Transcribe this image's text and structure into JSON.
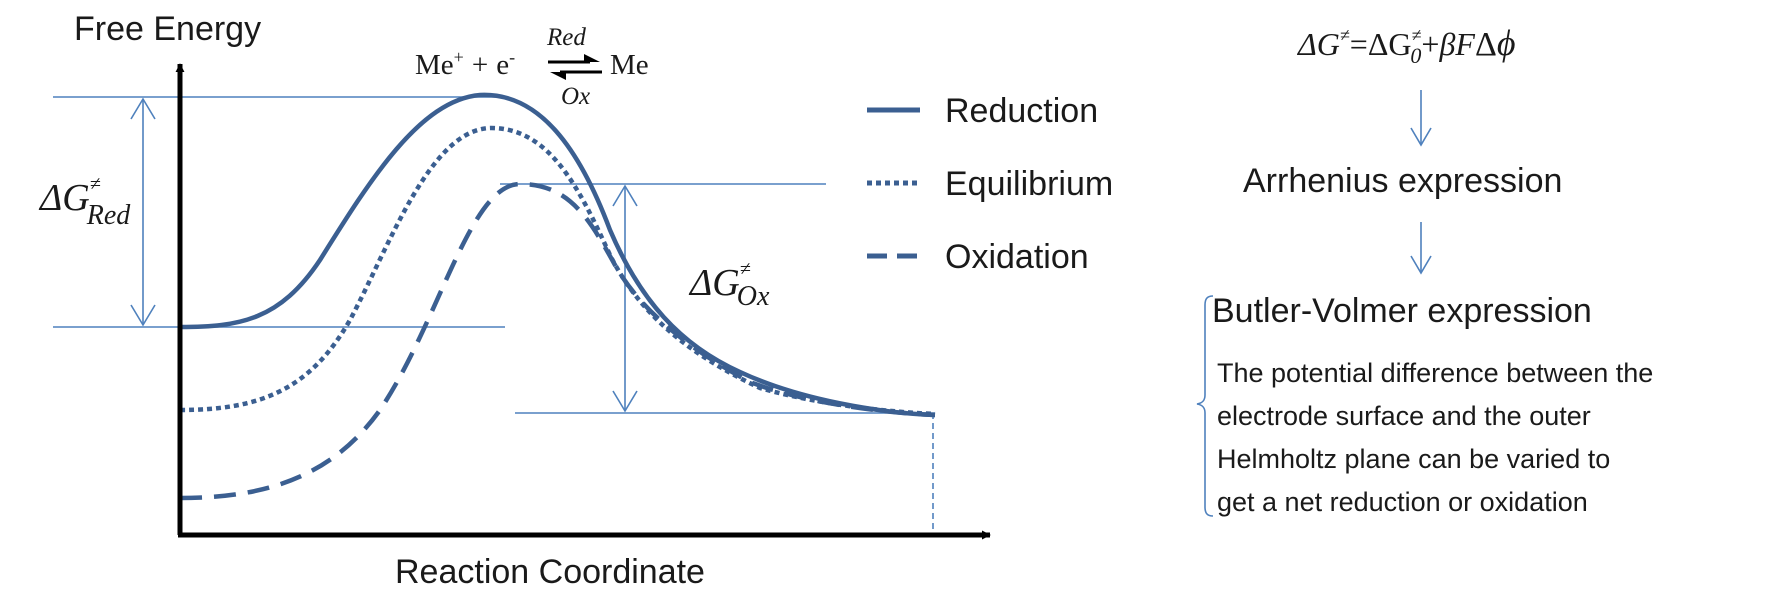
{
  "axes": {
    "y_label": "Free Energy",
    "x_label": "Reaction Coordinate"
  },
  "reaction": {
    "left_species": "Me",
    "left_superscript": "+",
    "plus": "+",
    "electron": "e",
    "electron_superscript": "-",
    "forward_label": "Red",
    "backward_label": "Ox",
    "right_species": "Me"
  },
  "barriers": {
    "reduction": {
      "symbol": "ΔG",
      "superscript": "≠",
      "subscript": "Red"
    },
    "oxidation": {
      "symbol": "ΔG",
      "superscript": "≠",
      "subscript": "Ox"
    }
  },
  "legend": {
    "reduction": "Reduction",
    "equilibrium": "Equilibrium",
    "oxidation": "Oxidation"
  },
  "colors": {
    "curve": "#3b5f91",
    "guide": "#4f81bd",
    "axis": "#000000"
  },
  "equation": {
    "lhs": "ΔG",
    "lhs_superscript": "≠",
    "equals": "=",
    "term1": "ΔG",
    "term1_superscript": "≠",
    "term1_subscript": "0",
    "plus": "+",
    "term2": "βF",
    "delta": "Δ",
    "phi": "ϕ"
  },
  "flow": {
    "step1": "Arrhenius expression",
    "step2": "Butler-Volmer expression",
    "description": [
      "The potential difference between the",
      "electrode surface and the outer",
      "Helmholtz plane can be varied to",
      "get a net reduction or oxidation"
    ]
  }
}
